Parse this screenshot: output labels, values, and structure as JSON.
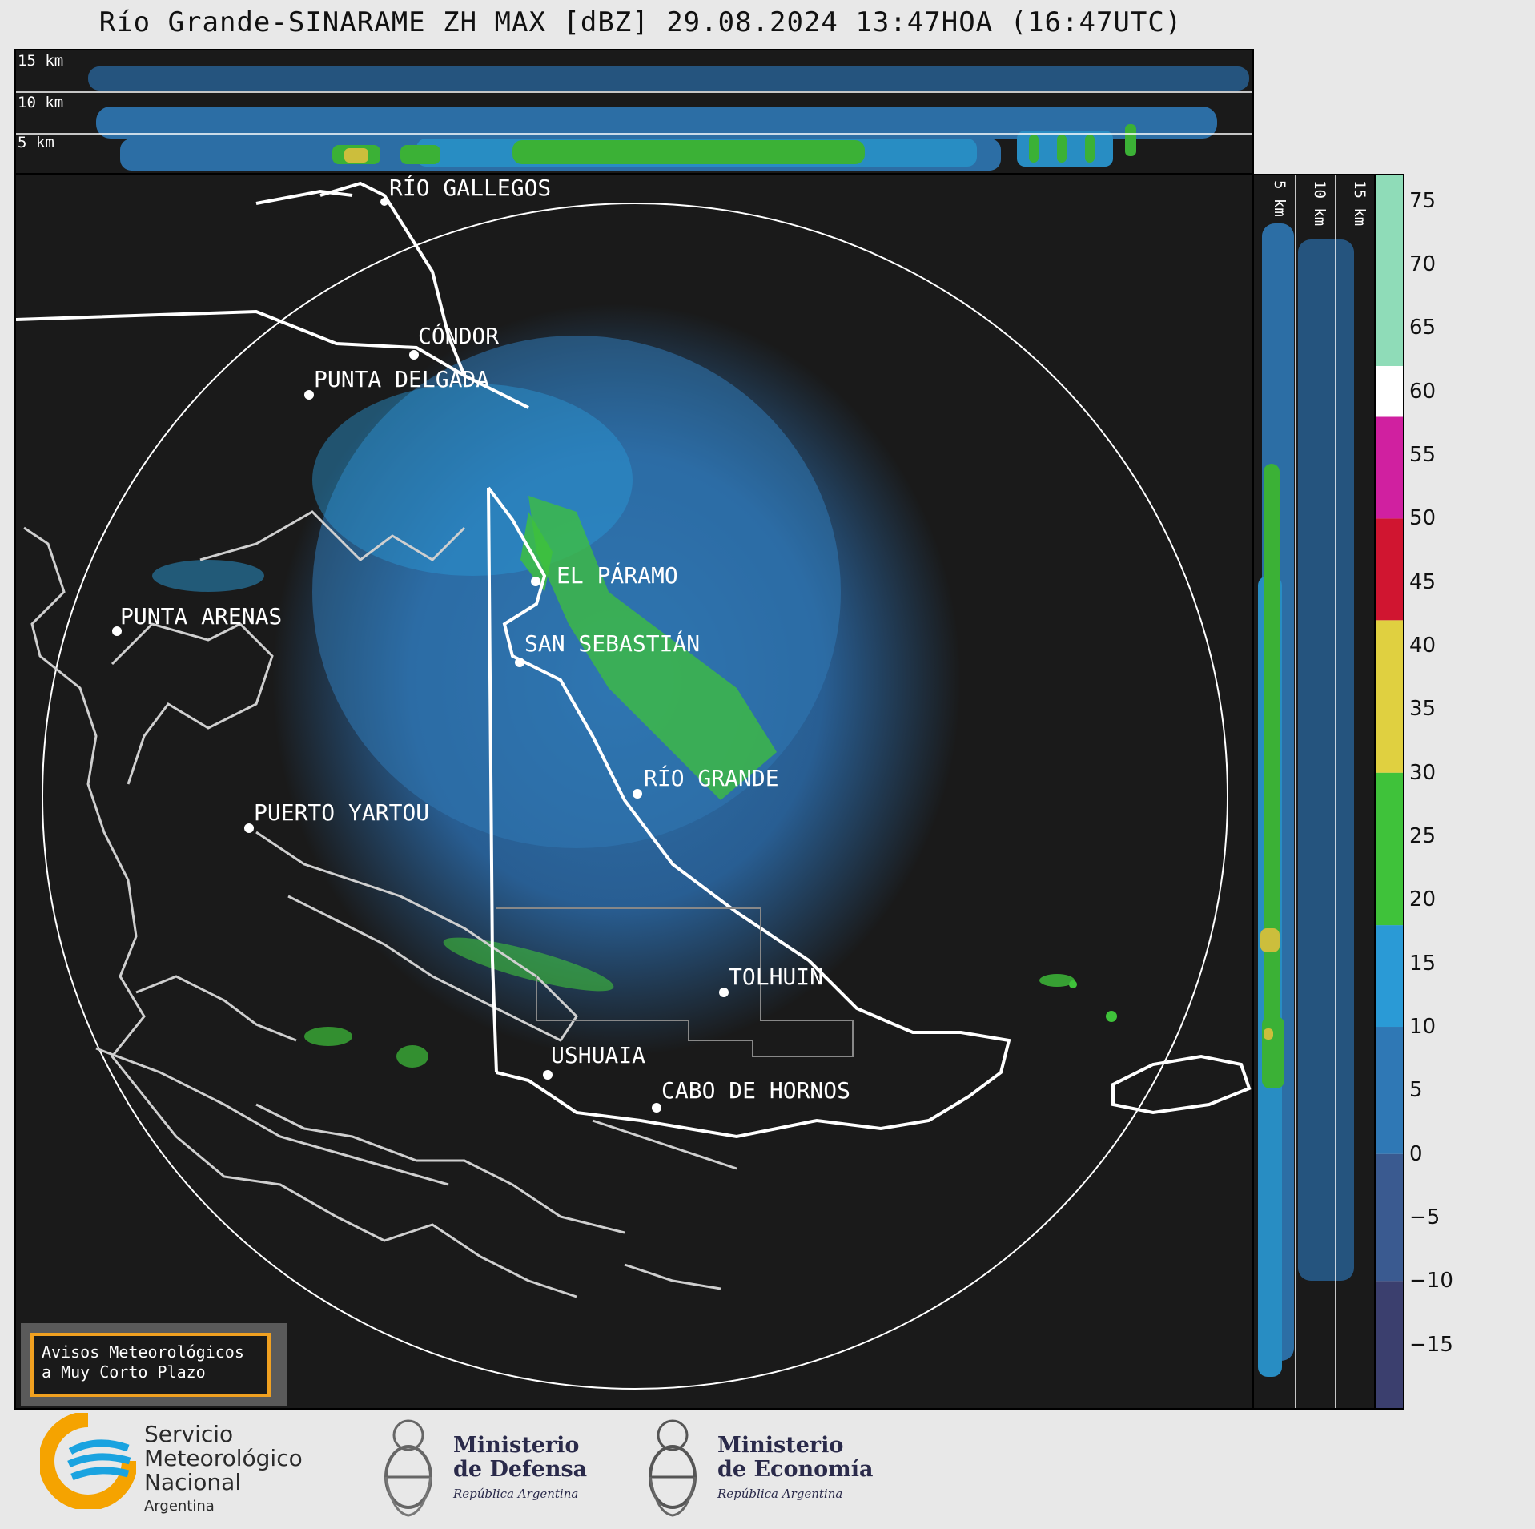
{
  "title": "Río Grande-SINARAME ZH MAX [dBZ] 29.08.2024 13:47HOA (16:47UTC)",
  "top_panel": {
    "height_labels": [
      "15 km",
      "10 km",
      "5 km"
    ]
  },
  "side_panel": {
    "height_labels": [
      "5 km",
      "10 km",
      "15 km"
    ]
  },
  "map": {
    "places": [
      {
        "name": "RÍO GALLEGOS"
      },
      {
        "name": "CÓNDOR"
      },
      {
        "name": "PUNTA DELGADA"
      },
      {
        "name": "EL PÁRAMO"
      },
      {
        "name": "PUNTA ARENAS"
      },
      {
        "name": "SAN SEBASTIÁN"
      },
      {
        "name": "RÍO GRANDE"
      },
      {
        "name": "PUERTO YARTOU"
      },
      {
        "name": "TOLHUIN"
      },
      {
        "name": "USHUAIA"
      },
      {
        "name": "CABO DE HORNOS"
      }
    ]
  },
  "colorbar": {
    "unit": "dBZ",
    "ticks": [
      "75",
      "70",
      "65",
      "60",
      "55",
      "50",
      "45",
      "40",
      "35",
      "30",
      "25",
      "20",
      "15",
      "10",
      "5",
      "0",
      "−5",
      "−10",
      "−15"
    ],
    "bands": [
      {
        "from": -20,
        "to": -10,
        "color": "#3b3f6e"
      },
      {
        "from": -10,
        "to": 0,
        "color": "#3a5a90"
      },
      {
        "from": 0,
        "to": 10,
        "color": "#2f78b5"
      },
      {
        "from": 10,
        "to": 18,
        "color": "#2a9ad6"
      },
      {
        "from": 18,
        "to": 30,
        "color": "#3fc23a"
      },
      {
        "from": 30,
        "to": 42,
        "color": "#e0d040"
      },
      {
        "from": 42,
        "to": 50,
        "color": "#d01530"
      },
      {
        "from": 50,
        "to": 58,
        "color": "#d020a0"
      },
      {
        "from": 58,
        "to": 62,
        "color": "#ffffff"
      },
      {
        "from": 62,
        "to": 77,
        "color": "#8fdcb8"
      }
    ]
  },
  "notice": {
    "line1": "Avisos Meteorológicos",
    "line2": "a Muy Corto Plazo"
  },
  "footer": {
    "smn": {
      "line1": "Servicio",
      "line2": "Meteorológico",
      "line3": "Nacional",
      "line4": "Argentina"
    },
    "defensa": {
      "line1": "Ministerio",
      "line2": "de Defensa",
      "line3": "República Argentina"
    },
    "economia": {
      "line1": "Ministerio",
      "line2": "de Economía",
      "line3": "República Argentina"
    }
  }
}
